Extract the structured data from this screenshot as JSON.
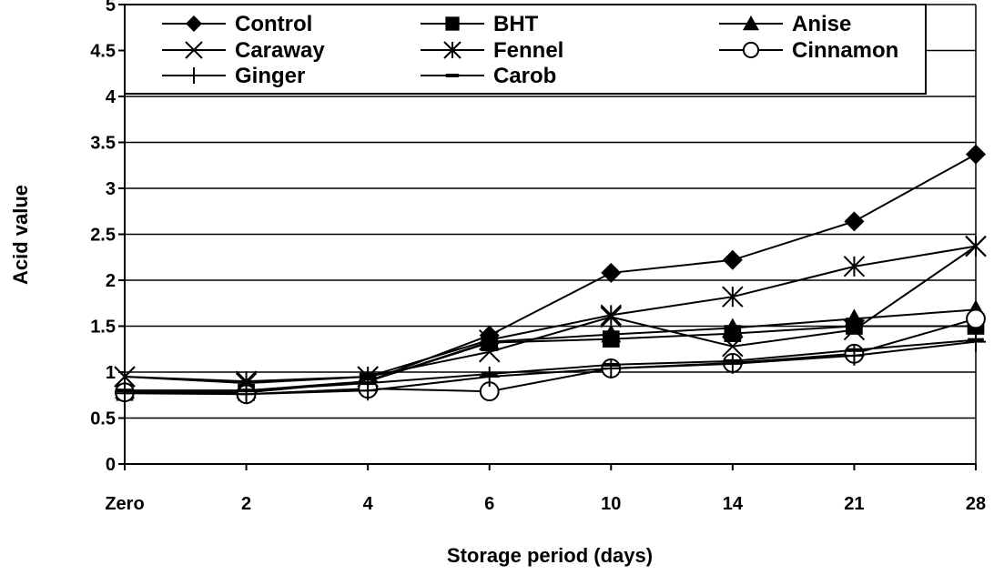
{
  "chart_data": {
    "type": "line",
    "title": "",
    "xlabel": "Storage period (days)",
    "ylabel": "Acid value",
    "categories": [
      "Zero",
      "2",
      "4",
      "6",
      "10",
      "14",
      "21",
      "28"
    ],
    "ylim": [
      0,
      5
    ],
    "yticks": [
      "0",
      "0.5",
      "1",
      "1.5",
      "2",
      "2.5",
      "3",
      "3.5",
      "4",
      "4.5",
      "5"
    ],
    "grid": true,
    "legend_position": "top-inside",
    "line_color": "#000000",
    "series": [
      {
        "name": "Control",
        "marker": "diamond",
        "values": [
          0.78,
          0.78,
          0.9,
          1.4,
          2.08,
          2.22,
          2.64,
          3.37
        ]
      },
      {
        "name": "BHT",
        "marker": "square",
        "values": [
          0.78,
          0.78,
          0.9,
          1.32,
          1.36,
          1.42,
          1.5,
          1.5
        ]
      },
      {
        "name": "Anise",
        "marker": "triangle",
        "values": [
          0.8,
          0.8,
          0.9,
          1.33,
          1.41,
          1.48,
          1.58,
          1.68
        ]
      },
      {
        "name": "Caraway",
        "marker": "x",
        "values": [
          0.95,
          0.88,
          0.95,
          1.22,
          1.6,
          1.28,
          1.46,
          2.37
        ]
      },
      {
        "name": "Fennel",
        "marker": "asterisk",
        "values": [
          0.95,
          0.9,
          0.95,
          1.35,
          1.62,
          1.82,
          2.15,
          2.37
        ]
      },
      {
        "name": "Cinnamon",
        "marker": "circle",
        "values": [
          0.78,
          0.76,
          0.82,
          0.79,
          1.04,
          1.1,
          1.2,
          1.58
        ]
      },
      {
        "name": "Ginger",
        "marker": "plus",
        "values": [
          0.77,
          0.76,
          0.8,
          0.95,
          1.04,
          1.09,
          1.18,
          1.33
        ]
      },
      {
        "name": "Carob",
        "marker": "dash",
        "values": [
          0.8,
          0.8,
          0.88,
          0.98,
          1.08,
          1.12,
          1.24,
          1.35
        ]
      }
    ]
  }
}
